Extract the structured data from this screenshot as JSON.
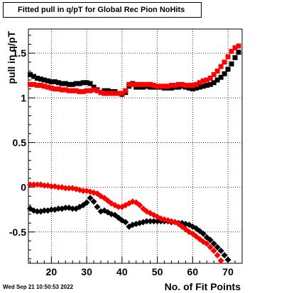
{
  "title": "Fitted pull in q/pT for Global Rec Pion NoHits",
  "timestamp": "Wed Sep 21 10:50:53 2022",
  "chart_data": {
    "type": "scatter",
    "title": "Fitted pull in q/pT for Global Rec Pion NoHits",
    "xlabel": "No. of Fit Points",
    "ylabel": "pull in q/pT",
    "xlim": [
      13.5,
      74
    ],
    "ylim": [
      -0.85,
      1.77
    ],
    "x_ticks": [
      20,
      30,
      40,
      50,
      60,
      70
    ],
    "x_tick_labels": [
      "20",
      "30",
      "40",
      "50",
      "60",
      "70"
    ],
    "y_ticks": [
      -0.5,
      0,
      0.5,
      1,
      1.5
    ],
    "y_tick_labels": [
      "-0.5",
      "0",
      "0.5",
      "1",
      "1.5"
    ],
    "grid": true,
    "legend": "none",
    "series": [
      {
        "color": "#000000",
        "marker": "square",
        "x": [
          14,
          15,
          16,
          17,
          18,
          19,
          20,
          21,
          22,
          23,
          24,
          25,
          26,
          27,
          28,
          29,
          30,
          31,
          32,
          33,
          34,
          35,
          36,
          37,
          38,
          39,
          40,
          41,
          42,
          43,
          44,
          45,
          46,
          47,
          48,
          49,
          50,
          51,
          52,
          53,
          54,
          55,
          56,
          57,
          58,
          59,
          60,
          61,
          62,
          63,
          64,
          65,
          66,
          67,
          68,
          69,
          70,
          71,
          72,
          73
        ],
        "y": [
          1.26,
          1.24,
          1.22,
          1.21,
          1.2,
          1.19,
          1.18,
          1.18,
          1.17,
          1.16,
          1.16,
          1.15,
          1.15,
          1.16,
          1.16,
          1.17,
          1.17,
          1.16,
          1.12,
          1.09,
          1.06,
          1.08,
          1.08,
          1.07,
          1.07,
          1.05,
          1.04,
          1.06,
          1.13,
          1.16,
          1.12,
          1.12,
          1.12,
          1.13,
          1.12,
          1.12,
          1.12,
          1.12,
          1.11,
          1.11,
          1.11,
          1.12,
          1.12,
          1.13,
          1.12,
          1.11,
          1.1,
          1.11,
          1.12,
          1.13,
          1.14,
          1.15,
          1.17,
          1.2,
          1.23,
          1.27,
          1.32,
          1.38,
          1.45,
          1.51
        ]
      },
      {
        "color": "#ff0000",
        "marker": "square",
        "x": [
          14,
          15,
          16,
          17,
          18,
          19,
          20,
          21,
          22,
          23,
          24,
          25,
          26,
          27,
          28,
          29,
          30,
          31,
          32,
          33,
          34,
          35,
          36,
          37,
          38,
          39,
          40,
          41,
          42,
          43,
          44,
          45,
          46,
          47,
          48,
          49,
          50,
          51,
          52,
          53,
          54,
          55,
          56,
          57,
          58,
          59,
          60,
          61,
          62,
          63,
          64,
          65,
          66,
          67,
          68,
          69,
          70,
          71,
          72,
          73
        ],
        "y": [
          1.15,
          1.15,
          1.14,
          1.14,
          1.13,
          1.12,
          1.11,
          1.1,
          1.1,
          1.09,
          1.09,
          1.08,
          1.08,
          1.08,
          1.07,
          1.07,
          1.08,
          1.08,
          1.09,
          1.08,
          1.06,
          1.05,
          1.05,
          1.05,
          1.05,
          1.05,
          1.05,
          1.08,
          1.15,
          1.15,
          1.15,
          1.15,
          1.15,
          1.15,
          1.15,
          1.14,
          1.13,
          1.13,
          1.13,
          1.13,
          1.14,
          1.14,
          1.15,
          1.15,
          1.14,
          1.14,
          1.14,
          1.15,
          1.17,
          1.19,
          1.2,
          1.22,
          1.26,
          1.3,
          1.35,
          1.4,
          1.46,
          1.52,
          1.56,
          1.58
        ]
      },
      {
        "color": "#000000",
        "marker": "diamond",
        "x": [
          14,
          15,
          16,
          17,
          18,
          19,
          20,
          21,
          22,
          23,
          24,
          25,
          26,
          27,
          28,
          29,
          30,
          31,
          32,
          33,
          34,
          35,
          36,
          37,
          38,
          39,
          40,
          41,
          42,
          43,
          44,
          45,
          46,
          47,
          48,
          49,
          50,
          51,
          52,
          53,
          54,
          55,
          56,
          57,
          58,
          59,
          60,
          61,
          62,
          63,
          64,
          65,
          66,
          67,
          68,
          69,
          70
        ],
        "y": [
          -0.24,
          -0.26,
          -0.27,
          -0.27,
          -0.26,
          -0.26,
          -0.25,
          -0.25,
          -0.24,
          -0.24,
          -0.23,
          -0.23,
          -0.24,
          -0.24,
          -0.22,
          -0.2,
          -0.17,
          -0.12,
          -0.16,
          -0.22,
          -0.27,
          -0.26,
          -0.28,
          -0.3,
          -0.31,
          -0.34,
          -0.37,
          -0.39,
          -0.44,
          -0.42,
          -0.41,
          -0.4,
          -0.39,
          -0.38,
          -0.38,
          -0.38,
          -0.38,
          -0.38,
          -0.38,
          -0.38,
          -0.39,
          -0.39,
          -0.4,
          -0.4,
          -0.41,
          -0.42,
          -0.44,
          -0.46,
          -0.49,
          -0.52,
          -0.56,
          -0.59,
          -0.63,
          -0.67,
          -0.71,
          -0.76,
          -0.81
        ]
      },
      {
        "color": "#ff0000",
        "marker": "diamond",
        "x": [
          14,
          15,
          16,
          17,
          18,
          19,
          20,
          21,
          22,
          23,
          24,
          25,
          26,
          27,
          28,
          29,
          30,
          31,
          32,
          33,
          34,
          35,
          36,
          37,
          38,
          39,
          40,
          41,
          42,
          43,
          44,
          45,
          46,
          47,
          48,
          49,
          50,
          51,
          52,
          53,
          54,
          55,
          56,
          57,
          58,
          59,
          60,
          61,
          62,
          63,
          64,
          65,
          66,
          67,
          68
        ],
        "y": [
          0.03,
          0.03,
          0.03,
          0.03,
          0.02,
          0.02,
          0.01,
          0.01,
          0.0,
          0.0,
          -0.01,
          -0.01,
          -0.01,
          -0.02,
          -0.03,
          -0.04,
          -0.04,
          -0.05,
          -0.06,
          -0.07,
          -0.1,
          -0.12,
          -0.15,
          -0.18,
          -0.2,
          -0.22,
          -0.22,
          -0.2,
          -0.18,
          -0.16,
          -0.17,
          -0.2,
          -0.24,
          -0.27,
          -0.29,
          -0.31,
          -0.33,
          -0.35,
          -0.36,
          -0.37,
          -0.38,
          -0.39,
          -0.41,
          -0.44,
          -0.47,
          -0.5,
          -0.52,
          -0.55,
          -0.58,
          -0.61,
          -0.63,
          -0.67,
          -0.71,
          -0.76,
          -0.82
        ]
      }
    ]
  }
}
